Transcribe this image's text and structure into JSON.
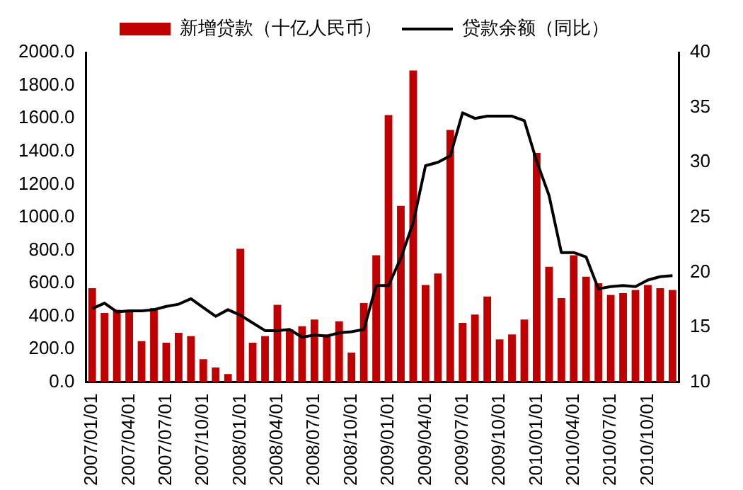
{
  "chart_data": {
    "type": "bar",
    "categories": [
      "2007/01/01",
      null,
      null,
      "2007/04/01",
      null,
      null,
      "2007/07/01",
      null,
      null,
      "2007/10/01",
      null,
      null,
      "2008/01/01",
      null,
      null,
      "2008/04/01",
      null,
      null,
      "2008/07/01",
      null,
      null,
      "2008/10/01",
      null,
      null,
      "2009/01/01",
      null,
      null,
      "2009/04/01",
      null,
      null,
      "2009/07/01",
      null,
      null,
      "2009/10/01",
      null,
      null,
      "2010/01/01",
      null,
      null,
      "2010/04/01",
      null,
      null,
      "2010/07/01",
      null,
      null,
      "2010/10/01",
      null,
      null
    ],
    "series": [
      {
        "name": "新增贷款（十亿人民币）",
        "color": "#c00000",
        "values": [
          570,
          420,
          440,
          430,
          250,
          450,
          240,
          300,
          280,
          140,
          90,
          50,
          810,
          240,
          280,
          470,
          320,
          340,
          380,
          290,
          370,
          180,
          480,
          770,
          1620,
          1070,
          1890,
          590,
          660,
          1530,
          360,
          410,
          520,
          260,
          290,
          380,
          1390,
          700,
          510,
          770,
          640,
          600,
          530,
          540,
          560,
          590,
          570,
          560
        ]
      },
      {
        "name": "贷款余额（同比）",
        "type": "line",
        "axis": "y2",
        "color": "#000000",
        "values": [
          16.7,
          17.2,
          16.4,
          16.5,
          16.5,
          16.6,
          16.9,
          17.1,
          17.6,
          16.8,
          16.0,
          16.6,
          16.1,
          15.4,
          14.7,
          14.7,
          14.8,
          14.1,
          14.3,
          14.2,
          14.5,
          14.6,
          14.8,
          18.8,
          18.8,
          21.3,
          24.5,
          29.7,
          30.0,
          30.6,
          34.5,
          34.0,
          34.2,
          34.2,
          34.2,
          33.8,
          30.1,
          27.0,
          21.8,
          21.8,
          21.4,
          18.5,
          18.7,
          18.8,
          18.7,
          19.3,
          19.6,
          19.7
        ]
      }
    ],
    "ylim": [
      0,
      2000
    ],
    "yticks": [
      {
        "value": 0,
        "label": "0.0"
      },
      {
        "value": 200,
        "label": "200.0"
      },
      {
        "value": 400,
        "label": "400.0"
      },
      {
        "value": 600,
        "label": "600.0"
      },
      {
        "value": 800,
        "label": "800.0"
      },
      {
        "value": 1000,
        "label": "1000.0"
      },
      {
        "value": 1200,
        "label": "1200.0"
      },
      {
        "value": 1400,
        "label": "1400.0"
      },
      {
        "value": 1600,
        "label": "1600.0"
      },
      {
        "value": 1800,
        "label": "1800.0"
      },
      {
        "value": 2000,
        "label": "2000.0"
      }
    ],
    "y2lim": [
      10,
      40
    ],
    "y2ticks": [
      10,
      15,
      20,
      25,
      30,
      35,
      40
    ],
    "grid": false,
    "legend": "top"
  }
}
